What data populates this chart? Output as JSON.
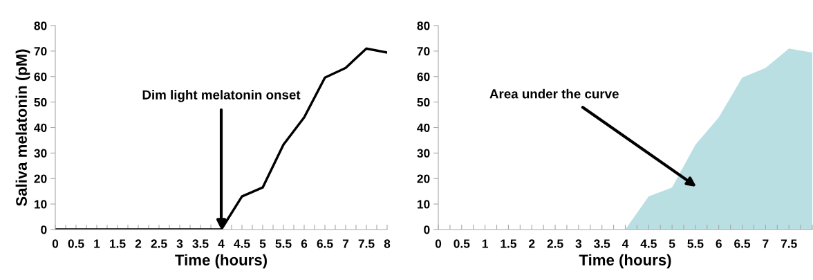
{
  "chart_data": [
    {
      "type": "line",
      "xlabel": "Time (hours)",
      "ylabel": "Saliva melatonin (pM)",
      "x": [
        0,
        0.5,
        1,
        1.5,
        2,
        2.5,
        3,
        3.5,
        4,
        4.5,
        5,
        5.5,
        6,
        6.5,
        7,
        7.5,
        8
      ],
      "series": [
        {
          "color": "#000000",
          "values": [
            0,
            0,
            0,
            0,
            0,
            0,
            0,
            0,
            0,
            13,
            16.5,
            33.3,
            44,
            59.6,
            63.4,
            71,
            69.4
          ]
        }
      ],
      "annotations": [
        {
          "text": "Dim light melatonin onset",
          "x": 4,
          "y": 0
        }
      ],
      "xlim": [
        0,
        8
      ],
      "ylim": [
        0,
        80
      ],
      "yticks": [
        0,
        10,
        20,
        30,
        40,
        50,
        60,
        70,
        80
      ],
      "xticks": [
        0,
        {
          "value": 0.25,
          "label": null
        },
        0.5,
        {
          "value": 0.75,
          "label": null
        },
        1,
        {
          "value": 1.25,
          "label": null
        },
        1.5,
        {
          "value": 1.75,
          "label": null
        },
        2,
        {
          "value": 2.25,
          "label": null
        },
        2.5,
        {
          "value": 2.75,
          "label": null
        },
        3,
        {
          "value": 3.25,
          "label": null
        },
        3.5,
        {
          "value": 3.75,
          "label": null
        },
        4,
        {
          "value": 4.25,
          "label": null
        },
        4.5,
        {
          "value": 4.75,
          "label": null
        },
        5,
        {
          "value": 5.25,
          "label": null
        },
        5.5,
        {
          "value": 5.75,
          "label": null
        },
        6,
        {
          "value": 6.25,
          "label": null
        },
        6.5,
        {
          "value": 6.75,
          "label": null
        },
        7,
        {
          "value": 7.25,
          "label": null
        },
        7.5,
        {
          "value": 7.75,
          "label": null
        },
        8
      ],
      "line_style": "solid",
      "grid": false,
      "legend": false
    },
    {
      "type": "area",
      "xlabel": "Time (hours)",
      "x": [
        0,
        0.5,
        1,
        1.5,
        2,
        2.5,
        3,
        3.5,
        4,
        4.5,
        5,
        5.5,
        6,
        6.5,
        7,
        7.5,
        8
      ],
      "series": [
        {
          "color": "#b9dfe2",
          "values": [
            0,
            0,
            0,
            0,
            0,
            0,
            0,
            0,
            0,
            13,
            16.5,
            33.3,
            44,
            59.6,
            63.4,
            71,
            69.4
          ]
        }
      ],
      "annotations": [
        "Area under the curve"
      ],
      "xlim": [
        0,
        8
      ],
      "ylim": [
        0,
        80
      ],
      "yticks": [
        0,
        10,
        20,
        30,
        40,
        50,
        60,
        70,
        80
      ],
      "xticks": [
        0,
        {
          "value": 0.25,
          "label": null
        },
        0.5,
        {
          "value": 0.75,
          "label": null
        },
        1,
        {
          "value": 1.25,
          "label": null
        },
        1.5,
        {
          "value": 1.75,
          "label": null
        },
        2,
        {
          "value": 2.25,
          "label": null
        },
        2.5,
        {
          "value": 2.75,
          "label": null
        },
        3,
        {
          "value": 3.25,
          "label": null
        },
        3.5,
        {
          "value": 3.75,
          "label": null
        },
        4,
        {
          "value": 4.25,
          "label": null
        },
        4.5,
        {
          "value": 4.75,
          "label": null
        },
        5,
        {
          "value": 5.25,
          "label": null
        },
        5.5,
        {
          "value": 5.75,
          "label": null
        },
        6,
        {
          "value": 6.25,
          "label": null
        },
        6.5,
        {
          "value": 6.75,
          "label": null
        },
        7,
        {
          "value": 7.25,
          "label": null
        },
        7.5,
        {
          "value": 7.75,
          "label": null
        },
        {
          "value": 8,
          "label": null
        }
      ],
      "grid": false,
      "legend": false
    }
  ]
}
